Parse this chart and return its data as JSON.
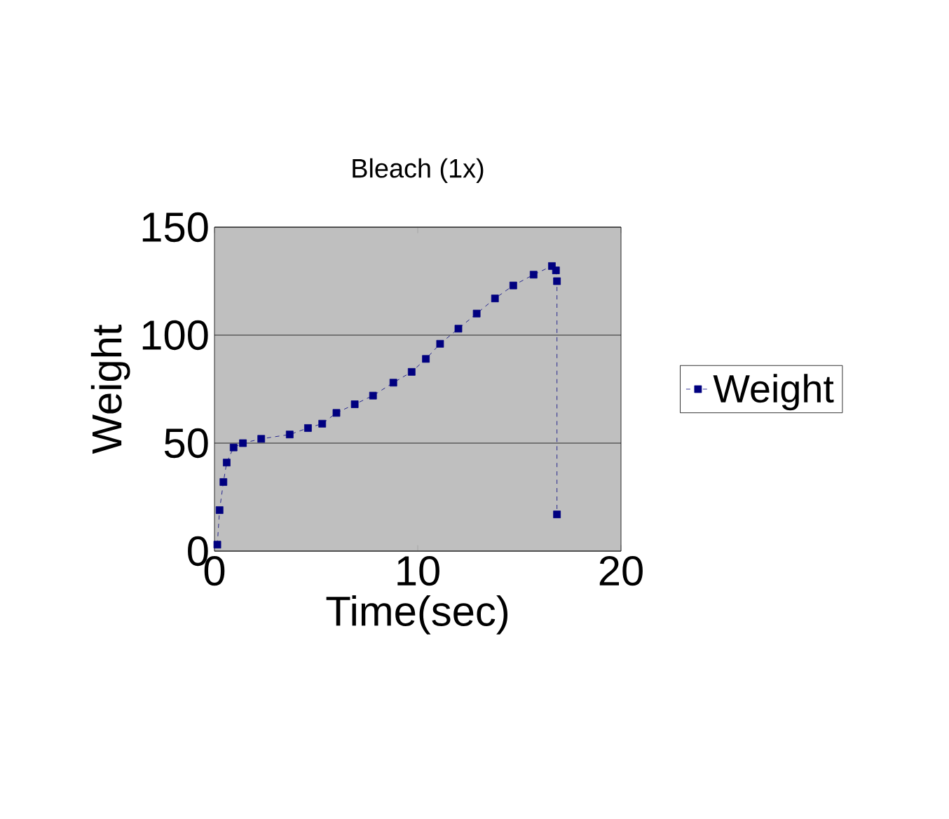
{
  "chart_data": {
    "type": "line",
    "title": "Bleach (1x)",
    "xlabel": "Time(sec)",
    "ylabel": "Weight",
    "x": [
      0.14,
      0.25,
      0.44,
      0.6,
      0.94,
      1.4,
      2.3,
      3.7,
      4.6,
      5.3,
      6.0,
      6.9,
      7.8,
      8.8,
      9.7,
      10.4,
      11.1,
      12.0,
      12.9,
      13.8,
      14.7,
      15.7,
      16.6,
      16.8,
      16.85,
      16.85
    ],
    "series": [
      {
        "name": "Weight",
        "color": "#000080",
        "values": [
          3,
          19,
          32,
          41,
          48,
          50,
          52,
          54,
          57,
          59,
          64,
          68,
          72,
          78,
          83,
          89,
          96,
          103,
          110,
          117,
          123,
          128,
          132,
          130,
          125,
          17
        ]
      }
    ],
    "xlim": [
      0,
      20
    ],
    "xticks": [
      0,
      10,
      20
    ],
    "ylim": [
      0,
      150
    ],
    "yticks": [
      0,
      50,
      100,
      150
    ],
    "grid": "y",
    "legend": "right",
    "marker": "square",
    "line_style": "dashed"
  }
}
